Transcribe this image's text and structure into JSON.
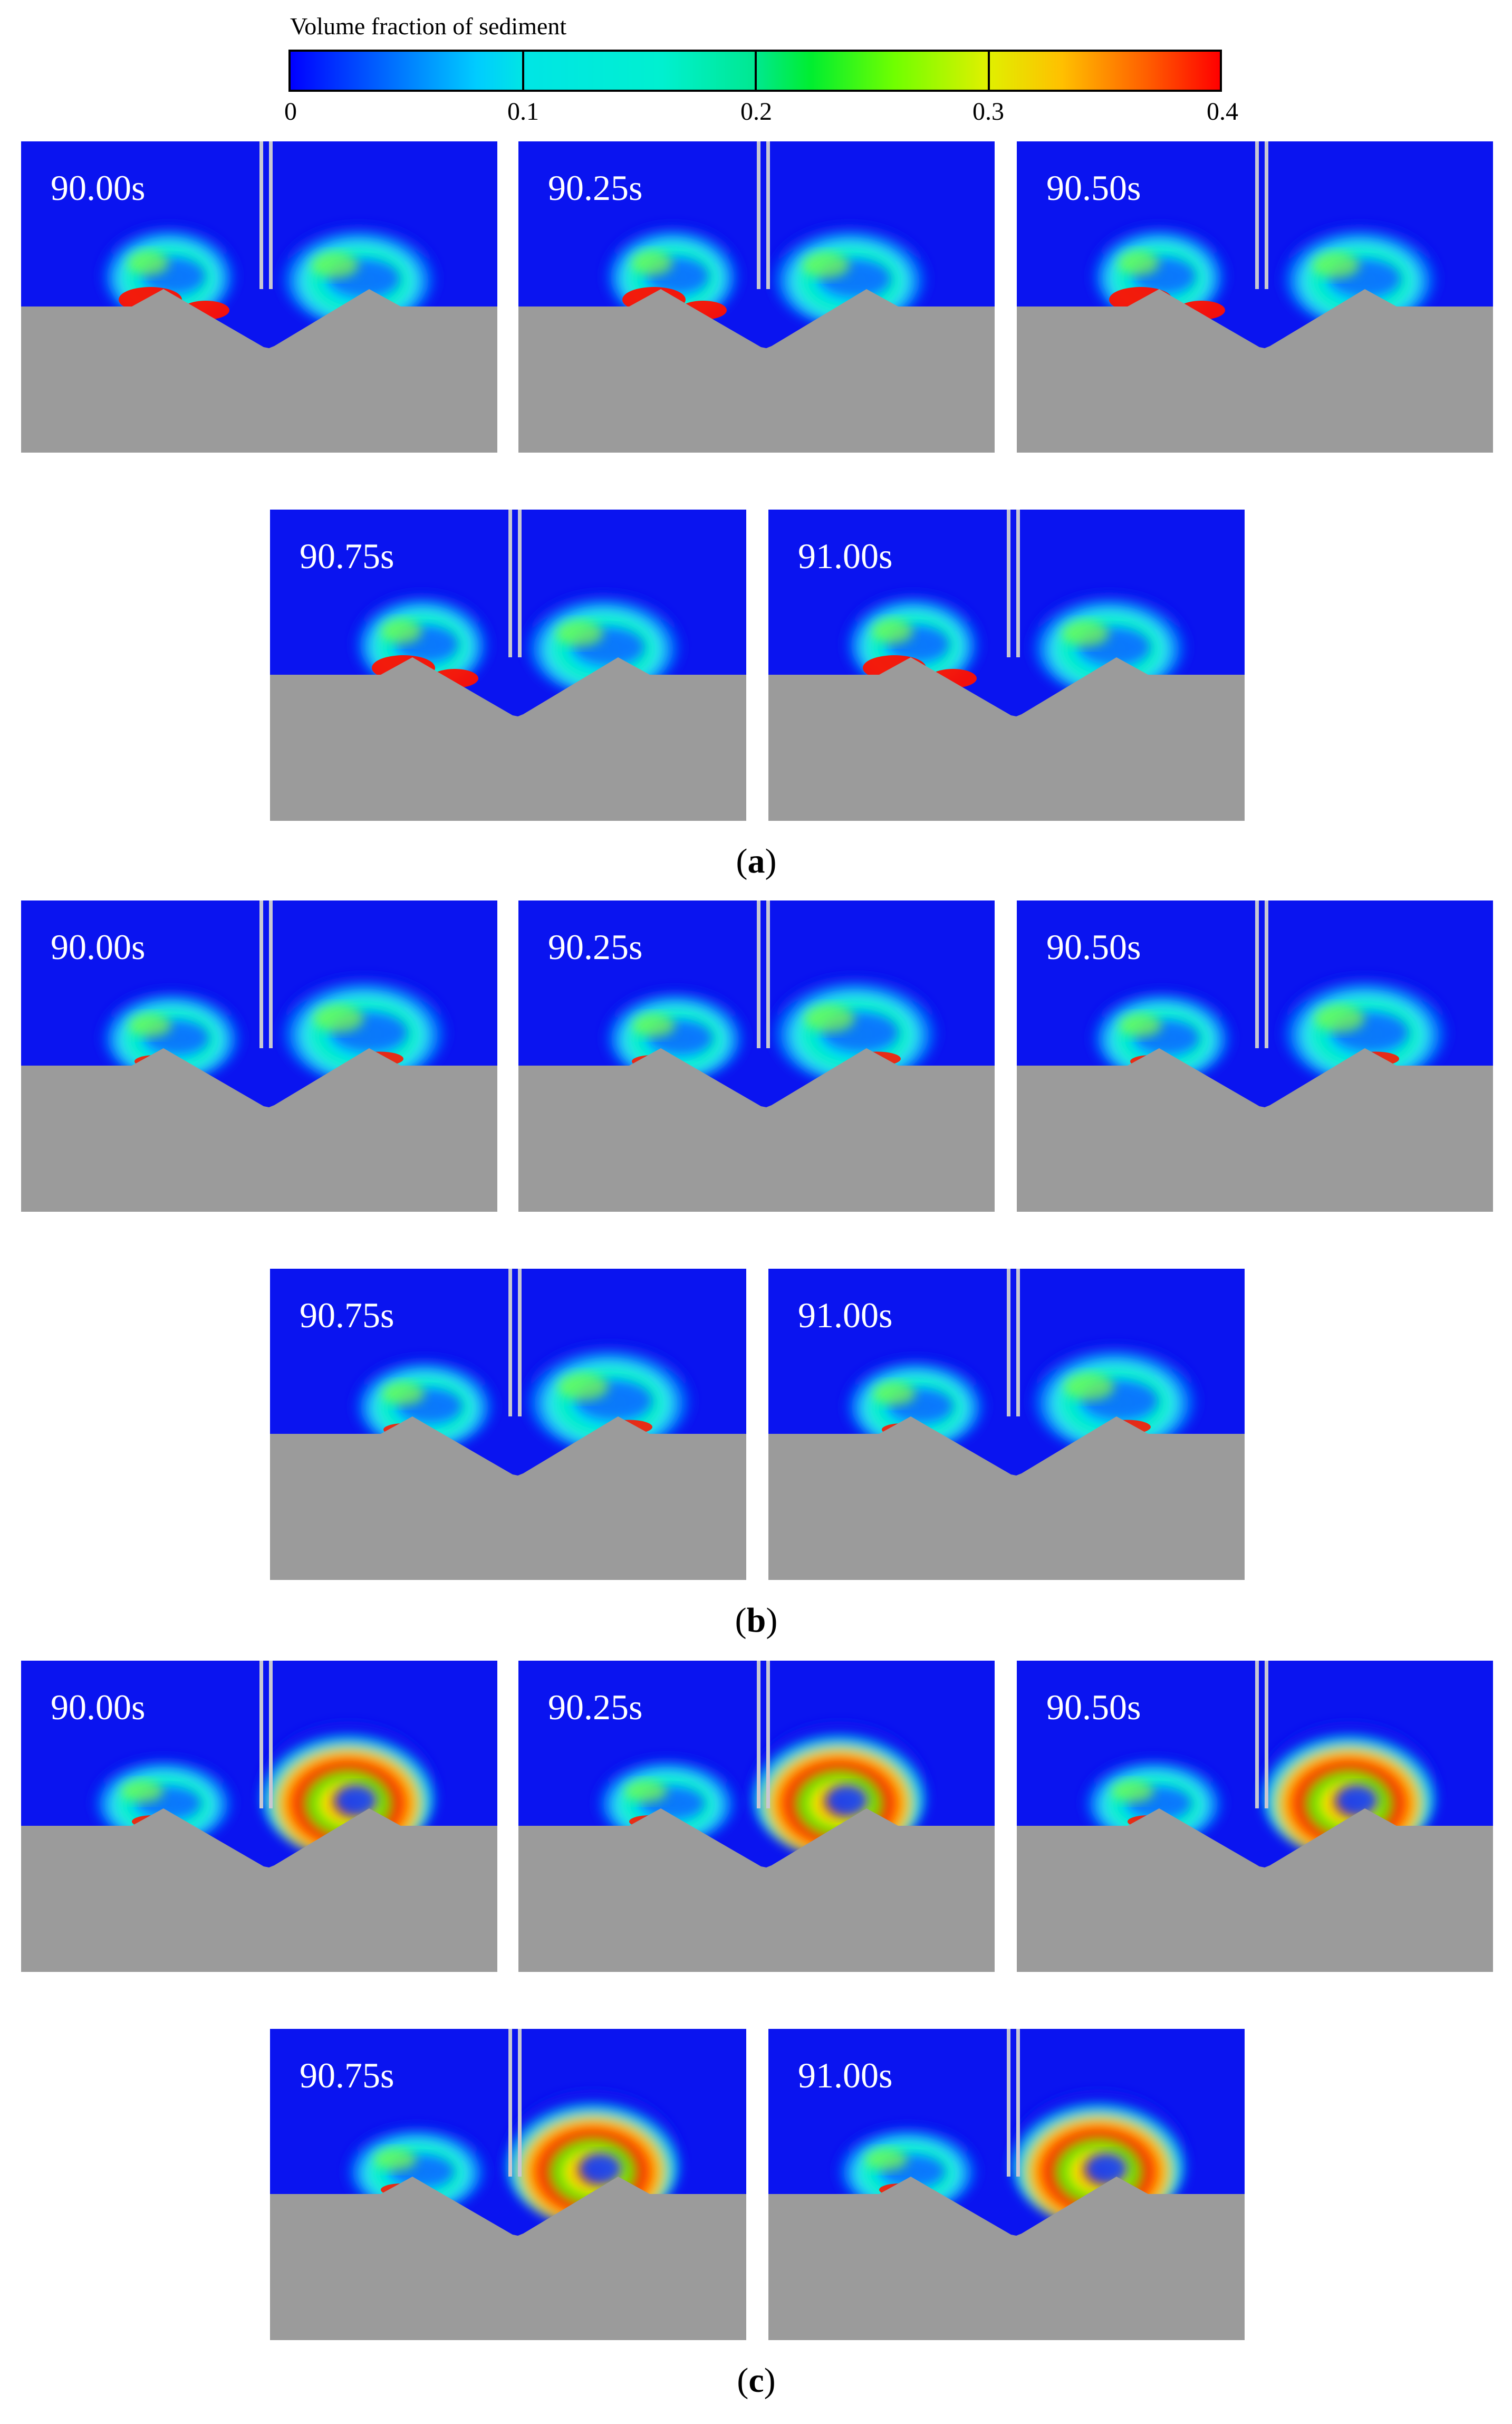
{
  "colorbar": {
    "title": "Volume fraction of sediment",
    "ticks": [
      "0",
      "0.1",
      "0.2",
      "0.3",
      "0.4"
    ],
    "colors": [
      "#0000ff",
      "#00e5e5",
      "#00ee30",
      "#e0f000",
      "#ff0000"
    ]
  },
  "colors": {
    "water": "#0a14f0",
    "sediment_bed": "#9b9b9b",
    "pipe": "#c8c8d2"
  },
  "groups": [
    {
      "label": "a",
      "times": [
        "90.00s",
        "90.25s",
        "90.50s",
        "90.75s",
        "91.00s"
      ]
    },
    {
      "label": "b",
      "times": [
        "90.00s",
        "90.25s",
        "90.50s",
        "90.75s",
        "91.00s"
      ]
    },
    {
      "label": "c",
      "times": [
        "90.00s",
        "90.25s",
        "90.50s",
        "90.75s",
        "91.00s"
      ]
    }
  ]
}
